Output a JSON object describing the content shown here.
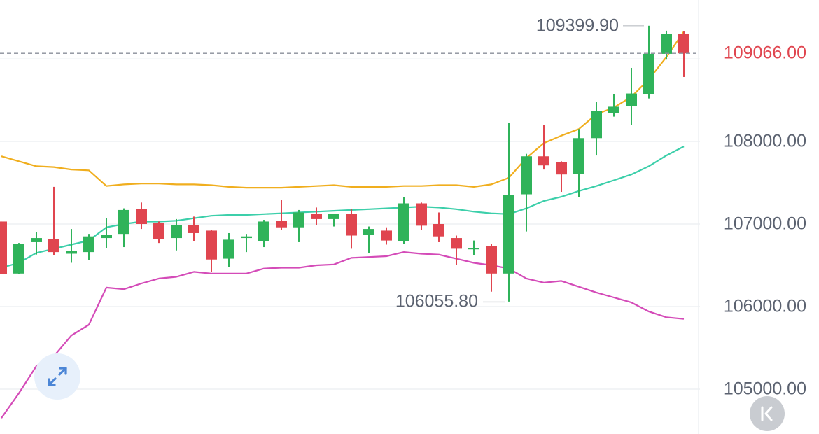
{
  "chart_data": {
    "type": "candlestick",
    "y_axis": {
      "ticks": [
        105000,
        106000,
        107000,
        108000
      ],
      "tick_labels": [
        "105000.00",
        "106000.00",
        "107000.00",
        "108000.00"
      ],
      "position": "right"
    },
    "last_price": {
      "value": 109066.0,
      "label": "109066.00",
      "color": "#e0454f",
      "line": "dashed"
    },
    "high_marker": {
      "value": 109399.9,
      "label": "109399.90"
    },
    "low_marker": {
      "value": 106055.8,
      "label": "106055.80"
    },
    "colors": {
      "up": "#2fb35a",
      "down": "#e0454f",
      "upper_band": "#f0ae1e",
      "middle_band": "#3ccfaa",
      "lower_band": "#d44bb8",
      "grid": "#eef0f3"
    },
    "candles": [
      {
        "o": 107030,
        "h": 107030,
        "l": 106390,
        "c": 106390
      },
      {
        "o": 106400,
        "h": 106770,
        "l": 106390,
        "c": 106760
      },
      {
        "o": 106780,
        "h": 106900,
        "l": 106630,
        "c": 106830
      },
      {
        "o": 106820,
        "h": 107450,
        "l": 106620,
        "c": 106660
      },
      {
        "o": 106640,
        "h": 106940,
        "l": 106530,
        "c": 106670
      },
      {
        "o": 106660,
        "h": 106880,
        "l": 106560,
        "c": 106850
      },
      {
        "o": 106830,
        "h": 107070,
        "l": 106710,
        "c": 106870
      },
      {
        "o": 106880,
        "h": 107190,
        "l": 106720,
        "c": 107170
      },
      {
        "o": 107180,
        "h": 107260,
        "l": 106940,
        "c": 107000
      },
      {
        "o": 107010,
        "h": 107030,
        "l": 106770,
        "c": 106820
      },
      {
        "o": 106830,
        "h": 107060,
        "l": 106680,
        "c": 106990
      },
      {
        "o": 106990,
        "h": 107090,
        "l": 106790,
        "c": 106890
      },
      {
        "o": 106920,
        "h": 106930,
        "l": 106420,
        "c": 106570
      },
      {
        "o": 106580,
        "h": 106890,
        "l": 106480,
        "c": 106810
      },
      {
        "o": 106830,
        "h": 106880,
        "l": 106660,
        "c": 106850
      },
      {
        "o": 106790,
        "h": 107050,
        "l": 106720,
        "c": 107030
      },
      {
        "o": 107040,
        "h": 107290,
        "l": 106930,
        "c": 106960
      },
      {
        "o": 106960,
        "h": 107170,
        "l": 106780,
        "c": 107140
      },
      {
        "o": 107120,
        "h": 107200,
        "l": 106990,
        "c": 107060
      },
      {
        "o": 107060,
        "h": 107110,
        "l": 106970,
        "c": 107120
      },
      {
        "o": 107120,
        "h": 107180,
        "l": 106700,
        "c": 106860
      },
      {
        "o": 106870,
        "h": 106970,
        "l": 106650,
        "c": 106940
      },
      {
        "o": 106920,
        "h": 106960,
        "l": 106750,
        "c": 106800
      },
      {
        "o": 106790,
        "h": 107330,
        "l": 106760,
        "c": 107250
      },
      {
        "o": 107250,
        "h": 107260,
        "l": 106930,
        "c": 106980
      },
      {
        "o": 107000,
        "h": 107140,
        "l": 106780,
        "c": 106850
      },
      {
        "o": 106830,
        "h": 106860,
        "l": 106500,
        "c": 106700
      },
      {
        "o": 106710,
        "h": 106800,
        "l": 106620,
        "c": 106710
      },
      {
        "o": 106730,
        "h": 106760,
        "l": 106180,
        "c": 106400
      },
      {
        "o": 106400,
        "h": 108220,
        "l": 106060,
        "c": 107350
      },
      {
        "o": 107360,
        "h": 107850,
        "l": 106910,
        "c": 107820
      },
      {
        "o": 107820,
        "h": 108200,
        "l": 107660,
        "c": 107710
      },
      {
        "o": 107750,
        "h": 107760,
        "l": 107390,
        "c": 107600
      },
      {
        "o": 107610,
        "h": 108150,
        "l": 107330,
        "c": 108040
      },
      {
        "o": 108040,
        "h": 108480,
        "l": 107830,
        "c": 108370
      },
      {
        "o": 108340,
        "h": 108570,
        "l": 108300,
        "c": 108420
      },
      {
        "o": 108430,
        "h": 108890,
        "l": 108200,
        "c": 108580
      },
      {
        "o": 108570,
        "h": 109400,
        "l": 108520,
        "c": 109060
      },
      {
        "o": 109060,
        "h": 109340,
        "l": 108990,
        "c": 109300
      },
      {
        "o": 109300,
        "h": 109330,
        "l": 108780,
        "c": 109066
      }
    ],
    "middle_band": [
      106470,
      106530,
      106650,
      106700,
      106750,
      106800,
      106960,
      107000,
      107030,
      107030,
      107040,
      107070,
      107100,
      107110,
      107110,
      107120,
      107130,
      107140,
      107150,
      107160,
      107170,
      107180,
      107190,
      107200,
      107210,
      107200,
      107180,
      107150,
      107130,
      107120,
      107190,
      107280,
      107330,
      107400,
      107460,
      107530,
      107600,
      107700,
      107830,
      107940
    ],
    "upper_band": [
      107820,
      107760,
      107700,
      107690,
      107660,
      107650,
      107460,
      107480,
      107490,
      107490,
      107480,
      107480,
      107470,
      107450,
      107440,
      107440,
      107440,
      107450,
      107460,
      107470,
      107450,
      107450,
      107450,
      107460,
      107460,
      107470,
      107470,
      107450,
      107480,
      107560,
      107800,
      107980,
      108070,
      108150,
      108330,
      108410,
      108540,
      108750,
      109020,
      109330
    ],
    "lower_band": [
      104650,
      104950,
      105280,
      105400,
      105650,
      105780,
      106230,
      106210,
      106280,
      106340,
      106360,
      106420,
      106400,
      106400,
      106400,
      106460,
      106470,
      106470,
      106500,
      106510,
      106590,
      106600,
      106610,
      106660,
      106640,
      106630,
      106580,
      106530,
      106500,
      106460,
      106340,
      106290,
      106310,
      106240,
      106170,
      106110,
      106050,
      105940,
      105870,
      105850
    ]
  }
}
